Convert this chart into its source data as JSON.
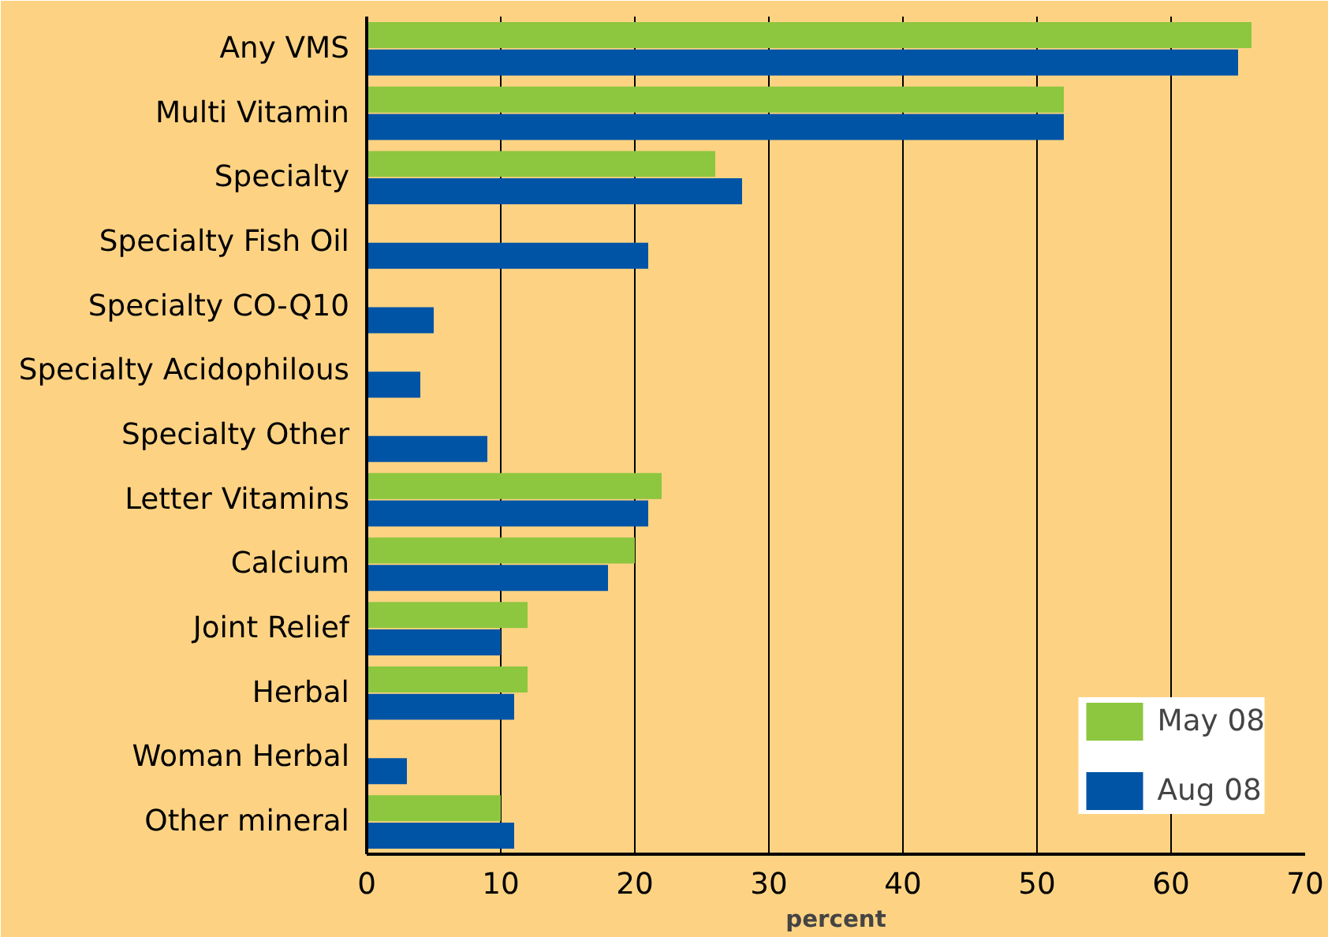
{
  "chart_data": {
    "type": "bar",
    "orientation": "horizontal",
    "xlabel": "percent",
    "categories": [
      "Any VMS",
      "Multi Vitamin",
      "Specialty",
      "Specialty Fish Oil",
      "Specialty CO-Q10",
      "Specialty Acidophilous",
      "Specialty Other",
      "Letter Vitamins",
      "Calcium",
      "Joint Relief",
      "Herbal",
      "Woman Herbal",
      "Other mineral"
    ],
    "series": [
      {
        "name": "May 08",
        "color": "#8dc63f",
        "values": [
          66,
          52,
          26,
          null,
          null,
          null,
          null,
          22,
          20,
          12,
          12,
          null,
          10
        ]
      },
      {
        "name": "Aug 08",
        "color": "#0054a6",
        "values": [
          65,
          52,
          28,
          21,
          5,
          4,
          9,
          21,
          18,
          10,
          11,
          3,
          11
        ]
      }
    ],
    "xlim": [
      0,
      70
    ],
    "xticks": [
      0,
      10,
      20,
      30,
      40,
      50,
      60,
      70
    ],
    "grid": "x",
    "legend": "bottom right"
  }
}
